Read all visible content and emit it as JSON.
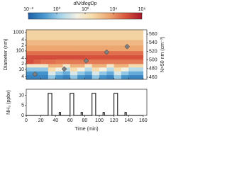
{
  "chart_data": [
    {
      "type": "heatmap",
      "colorbar_title": "dN/dlogDp",
      "clim": [
        0.01,
        1000000
      ],
      "cticks": [
        {
          "value": 0.01,
          "label": "10⁻²"
        },
        {
          "value": 1,
          "label": "10⁰"
        },
        {
          "value": 100,
          "label": "10²"
        },
        {
          "value": 10000,
          "label": "10⁴"
        },
        {
          "value": 1000000,
          "label": "10⁶"
        }
      ],
      "colors": [
        "#1f5fa8",
        "#4a9ad0",
        "#a9d5ea",
        "#f4f1e4",
        "#f5d9a8",
        "#eda56f",
        "#d9553e",
        "#a8162a"
      ],
      "ylabel": "Diameter (nm)",
      "log_y": true,
      "ylim": [
        2.9,
        1400
      ],
      "yticks": [
        1000,
        {
          "value": 400,
          "label": "4"
        },
        {
          "value": 200,
          "label": "2"
        },
        100,
        {
          "value": 40,
          "label": "4"
        },
        {
          "value": 20,
          "label": "2"
        },
        10,
        {
          "value": 4,
          "label": "4"
        }
      ],
      "xlim": [
        0,
        165
      ],
      "xticks": [
        0,
        20,
        40,
        60,
        80,
        100,
        120,
        140,
        160
      ],
      "x_edges": [
        0,
        10,
        20,
        30,
        40,
        50,
        60,
        70,
        80,
        90,
        100,
        110,
        120,
        130,
        140,
        150,
        160
      ],
      "y_edges": [
        2.9,
        5,
        8,
        13,
        20,
        35,
        60,
        100,
        200,
        400,
        1400
      ],
      "values": [
        [
          0.05,
          0.05,
          0.05,
          1,
          0.1,
          0.05,
          1,
          0.1,
          0.05,
          1,
          0.1,
          0.05,
          1,
          0.1,
          0.05,
          0.05
        ],
        [
          0.1,
          0.1,
          0.1,
          10,
          1,
          0.3,
          10,
          1,
          0.3,
          10,
          1,
          0.3,
          10,
          1,
          0.3,
          0.3
        ],
        [
          1,
          1,
          1,
          300,
          30,
          3,
          300,
          30,
          3,
          300,
          30,
          3,
          300,
          30,
          3,
          3
        ],
        [
          100,
          100,
          100,
          3000,
          3000,
          100,
          3000,
          3000,
          100,
          3000,
          3000,
          100,
          3000,
          3000,
          300,
          300
        ],
        [
          100000,
          50000,
          30000,
          30000,
          20000,
          20000,
          20000,
          20000,
          20000,
          20000,
          20000,
          20000,
          20000,
          20000,
          20000,
          20000
        ],
        [
          100000,
          100000,
          100000,
          100000,
          100000,
          100000,
          100000,
          100000,
          80000,
          80000,
          80000,
          80000,
          80000,
          80000,
          80000,
          80000
        ],
        [
          30000,
          30000,
          30000,
          30000,
          30000,
          30000,
          30000,
          30000,
          30000,
          30000,
          30000,
          30000,
          30000,
          30000,
          30000,
          30000
        ],
        [
          5000,
          5000,
          5000,
          5000,
          5000,
          5000,
          5000,
          5000,
          5000,
          5000,
          5000,
          5000,
          5000,
          5000,
          5000,
          5000
        ],
        [
          2000,
          2000,
          2000,
          2000,
          2000,
          2000,
          2000,
          2000,
          2000,
          2000,
          2000,
          2000,
          2000,
          2000,
          2000,
          2000
        ],
        [
          500,
          500,
          500,
          500,
          500,
          500,
          500,
          500,
          500,
          500,
          500,
          500,
          500,
          500,
          500,
          500
        ]
      ],
      "y2label": "N>50 nm (cm⁻³)",
      "y2lim": [
        455,
        570
      ],
      "y2ticks": [
        460,
        480,
        500,
        520,
        540,
        560
      ],
      "series": [
        {
          "type": "scatter",
          "axis": "y2",
          "color": "#808080",
          "x": [
            12,
            52,
            82,
            110,
            138
          ],
          "values": [
            467,
            479,
            498,
            518,
            531
          ]
        }
      ]
    },
    {
      "type": "line",
      "xlabel": "Time (min)",
      "ylabel": "NH₃ (ppbv)",
      "xlim": [
        0,
        165
      ],
      "xticks": [
        0,
        20,
        40,
        60,
        80,
        100,
        120,
        140,
        160
      ],
      "ylim": [
        0,
        13
      ],
      "yticks": [
        0,
        5,
        10
      ],
      "color": "#000000",
      "x": [
        0,
        30,
        30,
        35,
        35,
        45,
        45,
        47,
        47,
        60,
        60,
        65,
        65,
        75,
        75,
        77,
        77,
        90,
        90,
        95,
        95,
        105,
        105,
        107,
        107,
        120,
        120,
        125,
        125,
        135,
        135,
        137,
        137,
        160
      ],
      "values": [
        0,
        0,
        11,
        11,
        0,
        0,
        1.5,
        1.5,
        0,
        0,
        11,
        11,
        0,
        0,
        1.5,
        1.5,
        0,
        0,
        11,
        11,
        0,
        0,
        1.5,
        1.5,
        0,
        0,
        11,
        11,
        0,
        0,
        1.5,
        1.5,
        0,
        0
      ]
    }
  ]
}
